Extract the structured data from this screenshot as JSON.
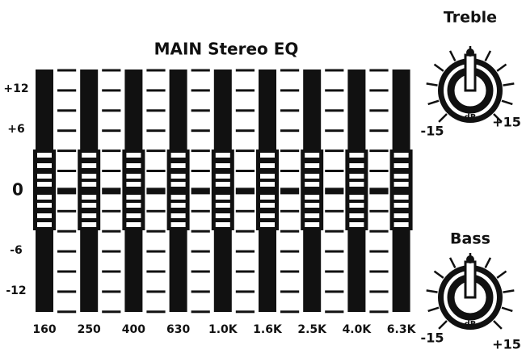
{
  "title": "MAIN Stereo EQ",
  "scale_labels": [
    "+12",
    "+6",
    "0",
    "-6",
    "-12"
  ],
  "frequencies": [
    "160",
    "250",
    "400",
    "630",
    "1.0K",
    "1.6K",
    "2.5K",
    "4.0K",
    "6.3K"
  ],
  "knobs": [
    {
      "label": "Treble",
      "min": "-15",
      "unit": "dB",
      "max": "+15"
    },
    {
      "label": "Bass",
      "min": "-15",
      "unit": "dB",
      "max": "+15"
    }
  ]
}
